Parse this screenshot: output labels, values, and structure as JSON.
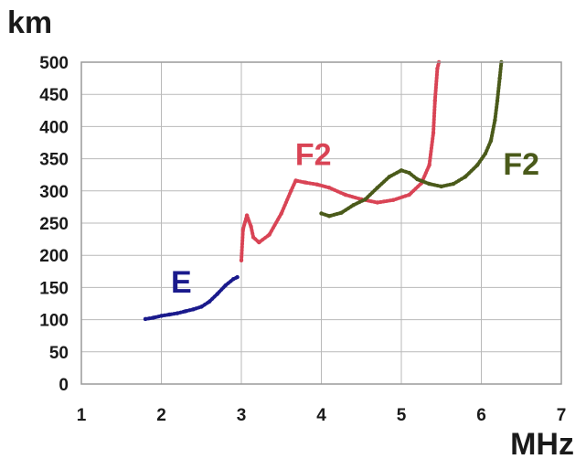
{
  "chart_data": {
    "type": "line",
    "xlabel": "MHz",
    "ylabel": "km",
    "xlim": [
      1,
      7
    ],
    "ylim": [
      0,
      500
    ],
    "x_ticks": [
      1,
      2,
      3,
      4,
      5,
      6,
      7
    ],
    "y_ticks": [
      0,
      50,
      100,
      150,
      200,
      250,
      300,
      350,
      400,
      450,
      500
    ],
    "grid": true,
    "series": [
      {
        "name": "E",
        "color": "#1a1a8c",
        "points": [
          [
            1.8,
            101
          ],
          [
            1.9,
            103
          ],
          [
            2.0,
            106
          ],
          [
            2.1,
            108
          ],
          [
            2.2,
            110
          ],
          [
            2.3,
            113
          ],
          [
            2.4,
            116
          ],
          [
            2.5,
            120
          ],
          [
            2.6,
            128
          ],
          [
            2.7,
            140
          ],
          [
            2.8,
            153
          ],
          [
            2.9,
            163
          ],
          [
            2.95,
            166
          ]
        ]
      },
      {
        "name": "F2",
        "color": "#d94455",
        "points": [
          [
            3.0,
            192
          ],
          [
            3.02,
            240
          ],
          [
            3.07,
            262
          ],
          [
            3.12,
            245
          ],
          [
            3.15,
            228
          ],
          [
            3.22,
            220
          ],
          [
            3.35,
            232
          ],
          [
            3.5,
            265
          ],
          [
            3.62,
            300
          ],
          [
            3.68,
            316
          ],
          [
            3.8,
            313
          ],
          [
            3.95,
            310
          ],
          [
            4.1,
            305
          ],
          [
            4.3,
            294
          ],
          [
            4.5,
            287
          ],
          [
            4.7,
            282
          ],
          [
            4.9,
            286
          ],
          [
            5.1,
            294
          ],
          [
            5.25,
            312
          ],
          [
            5.35,
            340
          ],
          [
            5.4,
            390
          ],
          [
            5.42,
            440
          ],
          [
            5.45,
            490
          ],
          [
            5.47,
            500
          ]
        ]
      },
      {
        "name": "F2",
        "color": "#4a5a1a",
        "points": [
          [
            4.0,
            265
          ],
          [
            4.1,
            261
          ],
          [
            4.25,
            266
          ],
          [
            4.4,
            278
          ],
          [
            4.55,
            287
          ],
          [
            4.7,
            305
          ],
          [
            4.85,
            322
          ],
          [
            5.0,
            332
          ],
          [
            5.1,
            328
          ],
          [
            5.2,
            318
          ],
          [
            5.35,
            311
          ],
          [
            5.5,
            307
          ],
          [
            5.65,
            311
          ],
          [
            5.8,
            322
          ],
          [
            5.95,
            340
          ],
          [
            6.05,
            358
          ],
          [
            6.12,
            378
          ],
          [
            6.17,
            410
          ],
          [
            6.2,
            440
          ],
          [
            6.23,
            475
          ],
          [
            6.25,
            500
          ]
        ]
      }
    ],
    "annotations": [
      {
        "text": "E",
        "x": 2.25,
        "y": 142,
        "color": "#1a1a8c"
      },
      {
        "text": "F2",
        "x": 3.9,
        "y": 340,
        "color": "#d94455"
      },
      {
        "text": "F2",
        "x": 6.5,
        "y": 325,
        "color": "#4a5a1a"
      }
    ]
  }
}
